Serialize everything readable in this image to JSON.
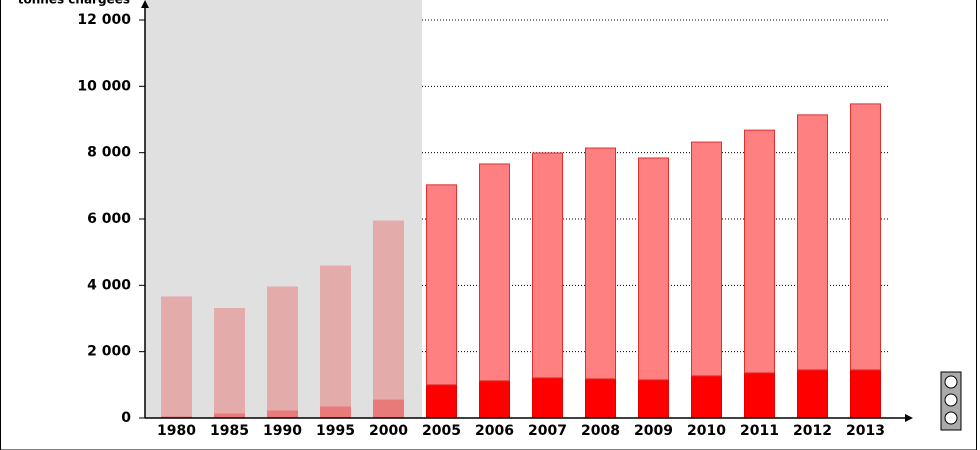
{
  "chart_data": {
    "type": "stacked-bar",
    "y_label": "tonnes chargées",
    "categories": [
      "1980",
      "1985",
      "1990",
      "1995",
      "2000",
      "2005",
      "2006",
      "2007",
      "2008",
      "2009",
      "2010",
      "2011",
      "2012",
      "2013"
    ],
    "shaded": [
      true,
      true,
      true,
      true,
      true,
      false,
      false,
      false,
      false,
      false,
      false,
      false,
      false,
      false
    ],
    "shade_color": "#e0e0e0",
    "series": [
      {
        "color": "#ff0000",
        "shaded_color": "#e87a7a",
        "stroke": "#e00000",
        "values": [
          60,
          150,
          240,
          360,
          570,
          1000,
          1120,
          1210,
          1180,
          1150,
          1270,
          1360,
          1450,
          1450
        ]
      },
      {
        "color": "#ff8080",
        "shaded_color": "#e4abab",
        "stroke": "#e03030",
        "values": [
          3590,
          3150,
          3710,
          4220,
          5370,
          6030,
          6540,
          6780,
          6960,
          6690,
          7050,
          7320,
          7690,
          8020
        ]
      }
    ],
    "ylim": [
      0,
      12000
    ],
    "yticks": [
      0,
      {
        "value": 2000,
        "label": "2 000"
      },
      {
        "value": 4000,
        "label": "4 000"
      },
      {
        "value": 6000,
        "label": "6 000"
      },
      {
        "value": 8000,
        "label": "8 000"
      },
      {
        "value": 10000,
        "label": "10 000"
      },
      {
        "value": 12000,
        "label": "12 000"
      }
    ],
    "grid": true
  }
}
